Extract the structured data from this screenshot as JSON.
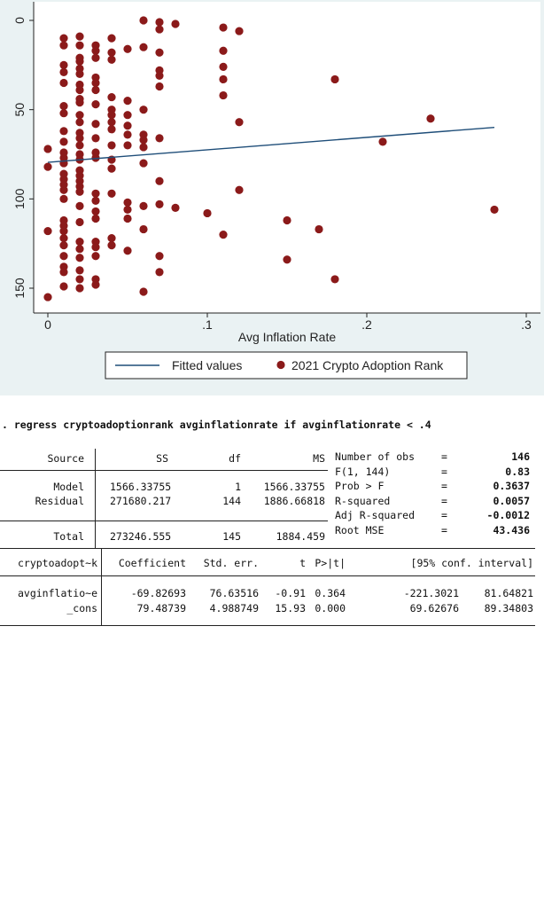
{
  "chart_data": {
    "type": "scatter",
    "xlabel": "Avg Inflation Rate",
    "ylabel": "",
    "xlim": [
      0,
      0.3
    ],
    "ylim": [
      0,
      155
    ],
    "y_reversed": true,
    "x_ticks": [
      "0",
      ".1",
      ".2",
      ".3"
    ],
    "y_ticks": [
      "0",
      "50",
      "100",
      "150"
    ],
    "grid": false,
    "legend": "bottom",
    "legend_items": [
      "Fitted values",
      "2021 Crypto Adoption Rank"
    ],
    "colors": {
      "points": "#8b1a1a",
      "line": "#1f4e79",
      "panel": "#eaf2f3"
    },
    "fitted_line": {
      "x": [
        0,
        0.28
      ],
      "y": [
        79.49,
        59.93
      ]
    },
    "series": [
      {
        "name": "2021 Crypto Adoption Rank",
        "points": [
          [
            0,
            72
          ],
          [
            0,
            82
          ],
          [
            0,
            118
          ],
          [
            0,
            155
          ],
          [
            0.01,
            10
          ],
          [
            0.01,
            14
          ],
          [
            0.01,
            25
          ],
          [
            0.01,
            29
          ],
          [
            0.01,
            35
          ],
          [
            0.01,
            48
          ],
          [
            0.01,
            52
          ],
          [
            0.01,
            62
          ],
          [
            0.01,
            68
          ],
          [
            0.01,
            74
          ],
          [
            0.01,
            77
          ],
          [
            0.01,
            80
          ],
          [
            0.01,
            86
          ],
          [
            0.01,
            89
          ],
          [
            0.01,
            92
          ],
          [
            0.01,
            95
          ],
          [
            0.01,
            100
          ],
          [
            0.01,
            112
          ],
          [
            0.01,
            115
          ],
          [
            0.01,
            118
          ],
          [
            0.01,
            122
          ],
          [
            0.01,
            126
          ],
          [
            0.01,
            132
          ],
          [
            0.01,
            138
          ],
          [
            0.01,
            141
          ],
          [
            0.01,
            149
          ],
          [
            0.02,
            9
          ],
          [
            0.02,
            14
          ],
          [
            0.02,
            21
          ],
          [
            0.02,
            23
          ],
          [
            0.02,
            27
          ],
          [
            0.02,
            30
          ],
          [
            0.02,
            36
          ],
          [
            0.02,
            39
          ],
          [
            0.02,
            44
          ],
          [
            0.02,
            46
          ],
          [
            0.02,
            53
          ],
          [
            0.02,
            57
          ],
          [
            0.02,
            63
          ],
          [
            0.02,
            66
          ],
          [
            0.02,
            70
          ],
          [
            0.02,
            75
          ],
          [
            0.02,
            78
          ],
          [
            0.02,
            84
          ],
          [
            0.02,
            87
          ],
          [
            0.02,
            90
          ],
          [
            0.02,
            93
          ],
          [
            0.02,
            96
          ],
          [
            0.02,
            104
          ],
          [
            0.02,
            113
          ],
          [
            0.02,
            124
          ],
          [
            0.02,
            128
          ],
          [
            0.02,
            133
          ],
          [
            0.02,
            140
          ],
          [
            0.02,
            145
          ],
          [
            0.02,
            150
          ],
          [
            0.03,
            14
          ],
          [
            0.03,
            17
          ],
          [
            0.03,
            21
          ],
          [
            0.03,
            32
          ],
          [
            0.03,
            35
          ],
          [
            0.03,
            39
          ],
          [
            0.03,
            47
          ],
          [
            0.03,
            58
          ],
          [
            0.03,
            66
          ],
          [
            0.03,
            74
          ],
          [
            0.03,
            77
          ],
          [
            0.03,
            97
          ],
          [
            0.03,
            101
          ],
          [
            0.03,
            107
          ],
          [
            0.03,
            111
          ],
          [
            0.03,
            124
          ],
          [
            0.03,
            127
          ],
          [
            0.03,
            132
          ],
          [
            0.03,
            145
          ],
          [
            0.03,
            148
          ],
          [
            0.04,
            10
          ],
          [
            0.04,
            18
          ],
          [
            0.04,
            22
          ],
          [
            0.04,
            43
          ],
          [
            0.04,
            50
          ],
          [
            0.04,
            53
          ],
          [
            0.04,
            57
          ],
          [
            0.04,
            61
          ],
          [
            0.04,
            70
          ],
          [
            0.04,
            78
          ],
          [
            0.04,
            83
          ],
          [
            0.04,
            97
          ],
          [
            0.04,
            122
          ],
          [
            0.04,
            126
          ],
          [
            0.05,
            16
          ],
          [
            0.05,
            45
          ],
          [
            0.05,
            53
          ],
          [
            0.05,
            59
          ],
          [
            0.05,
            64
          ],
          [
            0.05,
            70
          ],
          [
            0.05,
            102
          ],
          [
            0.05,
            106
          ],
          [
            0.05,
            111
          ],
          [
            0.05,
            129
          ],
          [
            0.06,
            0
          ],
          [
            0.06,
            15
          ],
          [
            0.06,
            50
          ],
          [
            0.06,
            64
          ],
          [
            0.06,
            67
          ],
          [
            0.06,
            71
          ],
          [
            0.06,
            80
          ],
          [
            0.06,
            104
          ],
          [
            0.06,
            117
          ],
          [
            0.06,
            152
          ],
          [
            0.07,
            1
          ],
          [
            0.07,
            5
          ],
          [
            0.07,
            18
          ],
          [
            0.07,
            28
          ],
          [
            0.07,
            31
          ],
          [
            0.07,
            37
          ],
          [
            0.07,
            66
          ],
          [
            0.07,
            90
          ],
          [
            0.07,
            103
          ],
          [
            0.07,
            132
          ],
          [
            0.07,
            141
          ],
          [
            0.08,
            2
          ],
          [
            0.08,
            105
          ],
          [
            0.1,
            108
          ],
          [
            0.11,
            4
          ],
          [
            0.11,
            17
          ],
          [
            0.11,
            26
          ],
          [
            0.11,
            33
          ],
          [
            0.11,
            42
          ],
          [
            0.11,
            120
          ],
          [
            0.12,
            6
          ],
          [
            0.12,
            57
          ],
          [
            0.12,
            95
          ],
          [
            0.15,
            112
          ],
          [
            0.15,
            134
          ],
          [
            0.17,
            117
          ],
          [
            0.18,
            33
          ],
          [
            0.18,
            145
          ],
          [
            0.21,
            68
          ],
          [
            0.24,
            55
          ],
          [
            0.28,
            106
          ]
        ]
      }
    ]
  },
  "command": ". regress cryptoadoptionrank avginflationrate if avginflationrate < .4",
  "anova": {
    "headers": [
      "Source",
      "SS",
      "df",
      "MS"
    ],
    "rows": [
      {
        "source": "Model",
        "ss": "1566.33755",
        "df": "1",
        "ms": "1566.33755"
      },
      {
        "source": "Residual",
        "ss": "271680.217",
        "df": "144",
        "ms": "1886.66818"
      }
    ],
    "total": {
      "source": "Total",
      "ss": "273246.555",
      "df": "145",
      "ms": "1884.459"
    }
  },
  "stats": [
    {
      "label": "Number of obs",
      "eq": "=",
      "value": "146"
    },
    {
      "label": "F(1, 144)",
      "eq": "=",
      "value": "0.83"
    },
    {
      "label": "Prob > F",
      "eq": "=",
      "value": "0.3637"
    },
    {
      "label": "R-squared",
      "eq": "=",
      "value": "0.0057"
    },
    {
      "label": "Adj R-squared",
      "eq": "=",
      "value": "-0.0012"
    },
    {
      "label": "Root MSE",
      "eq": "=",
      "value": "43.436"
    }
  ],
  "coef": {
    "depvar": "cryptoadopt~k",
    "headers": [
      "Coefficient",
      "Std. err.",
      "t",
      "P>|t|",
      "[95% conf. interval]"
    ],
    "rows": [
      {
        "var": "avginflatio~e",
        "coef": "-69.82693",
        "se": "76.63516",
        "t": "-0.91",
        "p": "0.364",
        "lo": "-221.3021",
        "hi": "81.64821"
      },
      {
        "var": "_cons",
        "coef": "79.48739",
        "se": "4.988749",
        "t": "15.93",
        "p": "0.000",
        "lo": "69.62676",
        "hi": "89.34803"
      }
    ]
  }
}
